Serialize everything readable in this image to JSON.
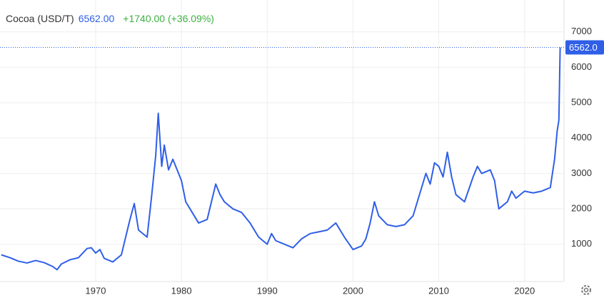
{
  "chart_data": {
    "type": "line",
    "title": "Cocoa (USD/T)",
    "price_label": "6562.00",
    "change_label": "+1740.00 (+36.09%)",
    "last_value_label": "6562.0",
    "x": [
      1959,
      1960,
      1961,
      1962,
      1963,
      1964,
      1965,
      1965.5,
      1966,
      1967,
      1968,
      1969,
      1969.5,
      1970,
      1970.5,
      1971,
      1972,
      1973,
      1973.5,
      1974,
      1974.5,
      1975,
      1976,
      1976.5,
      1977,
      1977.3,
      1977.7,
      1978,
      1978.5,
      1979,
      1979.5,
      1980,
      1980.5,
      1981,
      1982,
      1983,
      1983.5,
      1984,
      1984.5,
      1985,
      1986,
      1987,
      1988,
      1989,
      1990,
      1990.5,
      1991,
      1992,
      1993,
      1994,
      1995,
      1996,
      1997,
      1998,
      1999,
      2000,
      2001,
      2001.5,
      2002,
      2002.5,
      2003,
      2004,
      2005,
      2006,
      2007,
      2008,
      2008.5,
      2009,
      2009.5,
      2010,
      2010.5,
      2011,
      2011.5,
      2012,
      2013,
      2014,
      2014.5,
      2015,
      2016,
      2016.5,
      2017,
      2018,
      2018.5,
      2019,
      2020,
      2021,
      2022,
      2023,
      2023.5,
      2023.8,
      2024,
      2024.15
    ],
    "series": [
      {
        "name": "Cocoa",
        "color": "#2f5fe8",
        "values": [
          700,
          620,
          520,
          470,
          540,
          480,
          370,
          280,
          440,
          560,
          620,
          880,
          900,
          750,
          850,
          600,
          500,
          700,
          1200,
          1700,
          2150,
          1400,
          1200,
          2300,
          3500,
          4700,
          3200,
          3800,
          3100,
          3400,
          3100,
          2800,
          2200,
          2000,
          1600,
          1700,
          2200,
          2700,
          2400,
          2200,
          2000,
          1900,
          1600,
          1200,
          1000,
          1300,
          1100,
          1000,
          900,
          1150,
          1300,
          1350,
          1400,
          1600,
          1200,
          850,
          950,
          1150,
          1600,
          2200,
          1800,
          1550,
          1500,
          1550,
          1800,
          2600,
          3000,
          2700,
          3300,
          3200,
          2900,
          3600,
          2900,
          2400,
          2200,
          2900,
          3200,
          3000,
          3100,
          2800,
          2000,
          2200,
          2500,
          2300,
          2500,
          2450,
          2500,
          2600,
          3400,
          4200,
          4500,
          6562
        ]
      }
    ],
    "xlim": [
      1958.85,
      2024.6
    ],
    "xticks": [
      1970,
      1980,
      1990,
      2000,
      2010,
      2020
    ],
    "ylim": [
      0,
      7900
    ],
    "yticks": [
      1000,
      2000,
      3000,
      4000,
      5000,
      6000,
      7000
    ],
    "grid": true
  }
}
